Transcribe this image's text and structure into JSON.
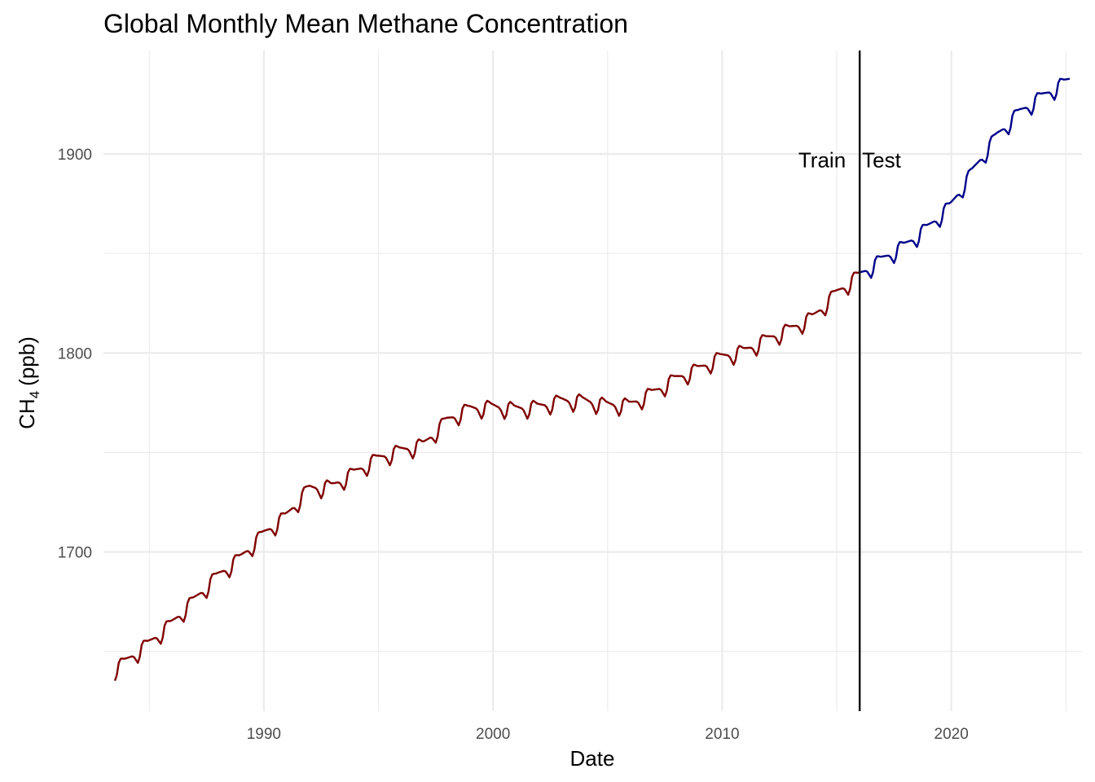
{
  "chart_data": {
    "type": "line",
    "title": "Global Monthly Mean Methane Concentration",
    "xlabel": "Date",
    "ylabel_main": "CH",
    "ylabel_sub": "4",
    "ylabel_unit": "(ppb)",
    "xlim": [
      1983.0,
      2025.7
    ],
    "ylim": [
      1620,
      1952
    ],
    "x_ticks": [
      1990,
      2000,
      2010,
      2020
    ],
    "x_minor_ticks": [
      1985,
      1995,
      2005,
      2015,
      2025
    ],
    "y_ticks": [
      1700,
      1800,
      1900
    ],
    "y_minor_ticks": [
      1650,
      1750,
      1850
    ],
    "grid": true,
    "split": {
      "x": 2016.0,
      "left_label": "Train",
      "right_label": "Test",
      "label_y": 1897
    },
    "seasonal_amplitude": [
      0.1,
      -0.1,
      -0.3,
      -0.5,
      -1.0,
      -2.0,
      -3.0,
      -2.0,
      0.4,
      1.0,
      0.7,
      0.3
    ],
    "series": [
      {
        "name": "Train",
        "color": "#800000",
        "x_start": 1983.5,
        "x_end": 2016.0,
        "annual": [
          [
            1983,
            1637
          ],
          [
            1984,
            1646
          ],
          [
            1985,
            1655
          ],
          [
            1986,
            1665
          ],
          [
            1987,
            1677
          ],
          [
            1988,
            1689
          ],
          [
            1989,
            1698
          ],
          [
            1990,
            1710
          ],
          [
            1991,
            1719
          ],
          [
            1992,
            1733
          ],
          [
            1993,
            1734
          ],
          [
            1994,
            1741
          ],
          [
            1995,
            1748
          ],
          [
            1996,
            1752
          ],
          [
            1997,
            1755
          ],
          [
            1998,
            1767
          ],
          [
            1999,
            1773
          ],
          [
            2000,
            1774
          ],
          [
            2001,
            1773
          ],
          [
            2002,
            1774
          ],
          [
            2003,
            1777
          ],
          [
            2004,
            1777
          ],
          [
            2005,
            1775
          ],
          [
            2006,
            1775
          ],
          [
            2007,
            1781
          ],
          [
            2008,
            1788
          ],
          [
            2009,
            1793
          ],
          [
            2010,
            1799
          ],
          [
            2011,
            1802
          ],
          [
            2012,
            1808
          ],
          [
            2013,
            1813
          ],
          [
            2014,
            1819
          ],
          [
            2015,
            1831
          ],
          [
            2016,
            1840
          ]
        ]
      },
      {
        "name": "Test",
        "color": "#00008b",
        "x_start": 2016.0,
        "x_end": 2025.2,
        "annual": [
          [
            2016,
            1840
          ],
          [
            2017,
            1848
          ],
          [
            2018,
            1855
          ],
          [
            2019,
            1864
          ],
          [
            2020,
            1875
          ],
          [
            2021,
            1893
          ],
          [
            2022,
            1910
          ],
          [
            2023,
            1922
          ],
          [
            2024,
            1930
          ],
          [
            2025,
            1937
          ]
        ]
      }
    ]
  }
}
